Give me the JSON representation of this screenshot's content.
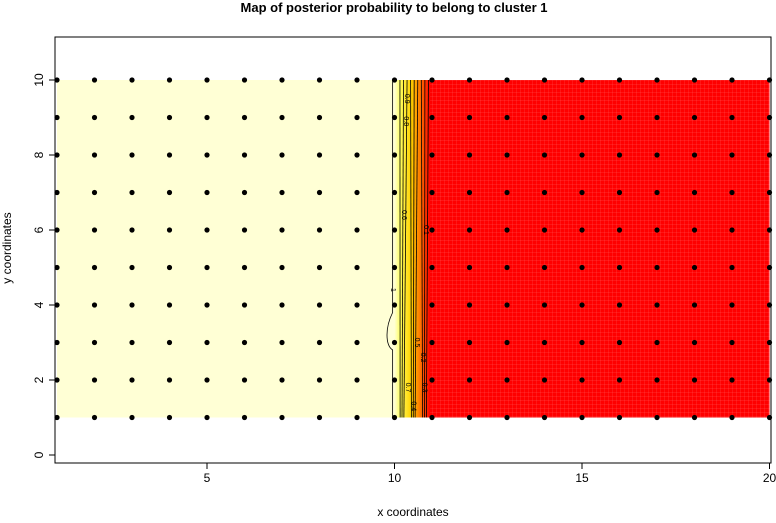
{
  "chart_data": {
    "type": "heatmap",
    "title": "Map of posterior probability to belong to cluster  1",
    "xlabel": "x coordinates",
    "ylabel": "y coordinates",
    "xlim": [
      1,
      20
    ],
    "ylim": [
      -0.2,
      11.15
    ],
    "x_ticks": [
      5,
      10,
      15,
      20
    ],
    "y_ticks": [
      0,
      2,
      4,
      6,
      8,
      10
    ],
    "grid_points": {
      "x": [
        1,
        2,
        3,
        4,
        5,
        6,
        7,
        8,
        9,
        10,
        11,
        12,
        13,
        14,
        15,
        16,
        17,
        18,
        19,
        20
      ],
      "y": [
        1,
        2,
        3,
        4,
        5,
        6,
        7,
        8,
        9,
        10
      ]
    },
    "probability_by_x": [
      1,
      1,
      1,
      1,
      1,
      1,
      1,
      1,
      1,
      1,
      0,
      0,
      0,
      0,
      0,
      0,
      0,
      0,
      0,
      0
    ],
    "contour_levels": [
      0.1,
      0.2,
      0.3,
      0.4,
      0.5,
      0.6,
      0.7,
      0.8,
      0.9,
      1
    ],
    "contour_labels": [
      "0.9",
      "0.6",
      "0.1",
      "0.8",
      "1",
      "0.5",
      "0.3",
      "0.4",
      "0.2",
      "0.7"
    ],
    "colors": {
      "high": "#FFFFD5",
      "mid": "#FFD000",
      "low": "#FF0000",
      "points": "#000000",
      "contour": "#000000"
    }
  }
}
